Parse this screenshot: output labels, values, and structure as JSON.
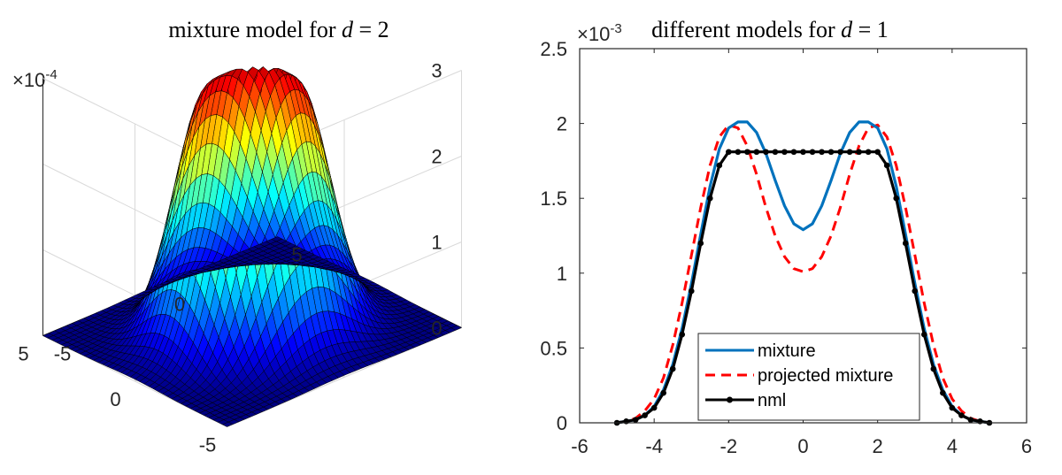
{
  "chart_data": [
    {
      "type": "surface",
      "title_prefix": "mixture model for ",
      "title_var": "d",
      "title_suffix": " = 2",
      "z_scale_label": "×10",
      "z_scale_exp": "-4",
      "z_ticks": [
        "0",
        "1",
        "2",
        "3"
      ],
      "x_ticks": [
        "-5",
        "0",
        "5"
      ],
      "y_ticks": [
        "-5",
        "0",
        "5"
      ],
      "xlim": [
        -5,
        5
      ],
      "ylim": [
        -5,
        5
      ],
      "zlim": [
        0,
        3
      ],
      "surface": {
        "shape": "ring",
        "ring_radius": 1.5,
        "peak_value": 2.85,
        "center_value": 2.1,
        "colormap": "jet",
        "edge_color": "#000000"
      }
    },
    {
      "type": "line",
      "title_prefix": "different models for ",
      "title_var": "d",
      "title_suffix": " = 1",
      "y_scale_label": "×10",
      "y_scale_exp": "-3",
      "xlim": [
        -6,
        6
      ],
      "ylim": [
        0,
        2.5
      ],
      "x_ticks": [
        "-6",
        "-4",
        "-2",
        "0",
        "2",
        "4",
        "6"
      ],
      "y_ticks": [
        "0",
        "0.5",
        "1",
        "1.5",
        "2",
        "2.5"
      ],
      "x": [
        -5,
        -4.75,
        -4.5,
        -4.25,
        -4,
        -3.75,
        -3.5,
        -3.25,
        -3,
        -2.75,
        -2.5,
        -2.25,
        -2,
        -1.75,
        -1.5,
        -1.25,
        -1,
        -0.75,
        -0.5,
        -0.25,
        0,
        0.25,
        0.5,
        0.75,
        1,
        1.25,
        1.5,
        1.75,
        2,
        2.25,
        2.5,
        2.75,
        3,
        3.25,
        3.5,
        3.75,
        4,
        4.25,
        4.5,
        4.75,
        5
      ],
      "series": [
        {
          "name": "mixture",
          "color": "#0072BD",
          "style": "solid",
          "values": [
            0.0,
            0.01,
            0.02,
            0.05,
            0.11,
            0.22,
            0.39,
            0.63,
            0.93,
            1.26,
            1.58,
            1.83,
            1.97,
            2.01,
            2.01,
            1.94,
            1.8,
            1.62,
            1.45,
            1.33,
            1.29,
            1.33,
            1.45,
            1.62,
            1.8,
            1.94,
            2.01,
            2.01,
            1.97,
            1.83,
            1.58,
            1.26,
            0.93,
            0.63,
            0.39,
            0.22,
            0.11,
            0.05,
            0.02,
            0.01,
            0.0
          ]
        },
        {
          "name": "projected mixture",
          "color": "#FF0000",
          "style": "dashed",
          "values": [
            0.0,
            0.01,
            0.03,
            0.08,
            0.16,
            0.3,
            0.52,
            0.8,
            1.12,
            1.44,
            1.72,
            1.91,
            1.99,
            1.97,
            1.85,
            1.66,
            1.44,
            1.25,
            1.11,
            1.03,
            1.01,
            1.03,
            1.11,
            1.25,
            1.44,
            1.66,
            1.85,
            1.97,
            1.99,
            1.91,
            1.72,
            1.44,
            1.12,
            0.8,
            0.52,
            0.3,
            0.16,
            0.08,
            0.03,
            0.01,
            0.0
          ]
        },
        {
          "name": "nml",
          "color": "#000000",
          "style": "solid-dots",
          "values": [
            0.0,
            0.01,
            0.02,
            0.05,
            0.1,
            0.2,
            0.36,
            0.59,
            0.88,
            1.2,
            1.5,
            1.72,
            1.81,
            1.81,
            1.81,
            1.81,
            1.81,
            1.81,
            1.81,
            1.81,
            1.81,
            1.81,
            1.81,
            1.81,
            1.81,
            1.81,
            1.81,
            1.81,
            1.81,
            1.72,
            1.5,
            1.2,
            0.88,
            0.59,
            0.36,
            0.2,
            0.1,
            0.05,
            0.02,
            0.01,
            0.0
          ]
        }
      ],
      "legend": {
        "location": "bottom-center",
        "entries": [
          "mixture",
          "projected mixture",
          "nml"
        ]
      }
    }
  ]
}
